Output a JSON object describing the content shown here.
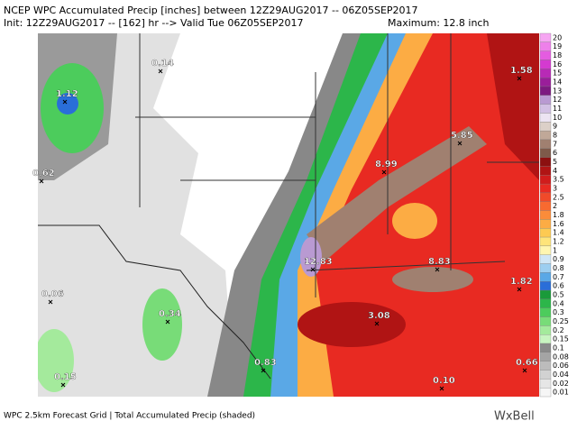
{
  "header": {
    "line1": "NCEP WPC Accumulated Precip [inches] between 12Z29AUG2017 -- 06Z05SEP2017",
    "line2": "Init: 12Z29AUG2017 -- [162] hr --> Valid Tue 06Z05SEP2017",
    "maximum": "Maximum: 12.8 inch"
  },
  "points": [
    "1.12",
    "0.14",
    "0.62",
    "12.83",
    "8.99",
    "5.85",
    "1.58",
    "8.83",
    "3.08",
    "1.82",
    "0.83",
    "0.66",
    "0.10",
    "0.15",
    "0.06",
    "0.34"
  ],
  "legend": [
    {
      "label": "20",
      "color": "#f6a6f2"
    },
    {
      "label": "19",
      "color": "#ee80ea"
    },
    {
      "label": "18",
      "color": "#e45ce0"
    },
    {
      "label": "16",
      "color": "#d43ad0"
    },
    {
      "label": "15",
      "color": "#b82ab6"
    },
    {
      "label": "14",
      "color": "#9a1e9a"
    },
    {
      "label": "13",
      "color": "#7c1a80"
    },
    {
      "label": "12",
      "color": "#b99ad2"
    },
    {
      "label": "11",
      "color": "#d2c0e4"
    },
    {
      "label": "10",
      "color": "#ece4f2"
    },
    {
      "label": "9",
      "color": "#dcd0c8"
    },
    {
      "label": "8",
      "color": "#c0a898"
    },
    {
      "label": "7",
      "color": "#a08070"
    },
    {
      "label": "6",
      "color": "#7e5a4a"
    },
    {
      "label": "5",
      "color": "#8c1010"
    },
    {
      "label": "4",
      "color": "#b01414"
    },
    {
      "label": "3.5",
      "color": "#d01c1c"
    },
    {
      "label": "3",
      "color": "#e82a22"
    },
    {
      "label": "2.5",
      "color": "#f04a2a"
    },
    {
      "label": "2",
      "color": "#f86a30"
    },
    {
      "label": "1.8",
      "color": "#fa8c3a"
    },
    {
      "label": "1.6",
      "color": "#fcac44"
    },
    {
      "label": "1.4",
      "color": "#fdca52"
    },
    {
      "label": "1.2",
      "color": "#fee47a"
    },
    {
      "label": "1",
      "color": "#fff6b0"
    },
    {
      "label": "0.9",
      "color": "#cfe6f6"
    },
    {
      "label": "0.8",
      "color": "#9ccef0"
    },
    {
      "label": "0.7",
      "color": "#5aa8e6"
    },
    {
      "label": "0.6",
      "color": "#2a6ed8"
    },
    {
      "label": "0.5",
      "color": "#1a9a3a"
    },
    {
      "label": "0.4",
      "color": "#2cb64a"
    },
    {
      "label": "0.3",
      "color": "#4ccc5c"
    },
    {
      "label": "0.25",
      "color": "#78dc78"
    },
    {
      "label": "0.2",
      "color": "#a4ea9c"
    },
    {
      "label": "0.15",
      "color": "#c8f4c0"
    },
    {
      "label": "0.1",
      "color": "#8a8a8a"
    },
    {
      "label": "0.08",
      "color": "#a4a4a4"
    },
    {
      "label": "0.06",
      "color": "#bcbcbc"
    },
    {
      "label": "0.04",
      "color": "#d2d2d2"
    },
    {
      "label": "0.02",
      "color": "#e6e6e6"
    },
    {
      "label": "0.01",
      "color": "#f6f6f6"
    }
  ],
  "footer": {
    "caption": "WPC 2.5km Forecast Grid | Total Accumulated Precip (shaded)",
    "logo": "WxBell"
  }
}
